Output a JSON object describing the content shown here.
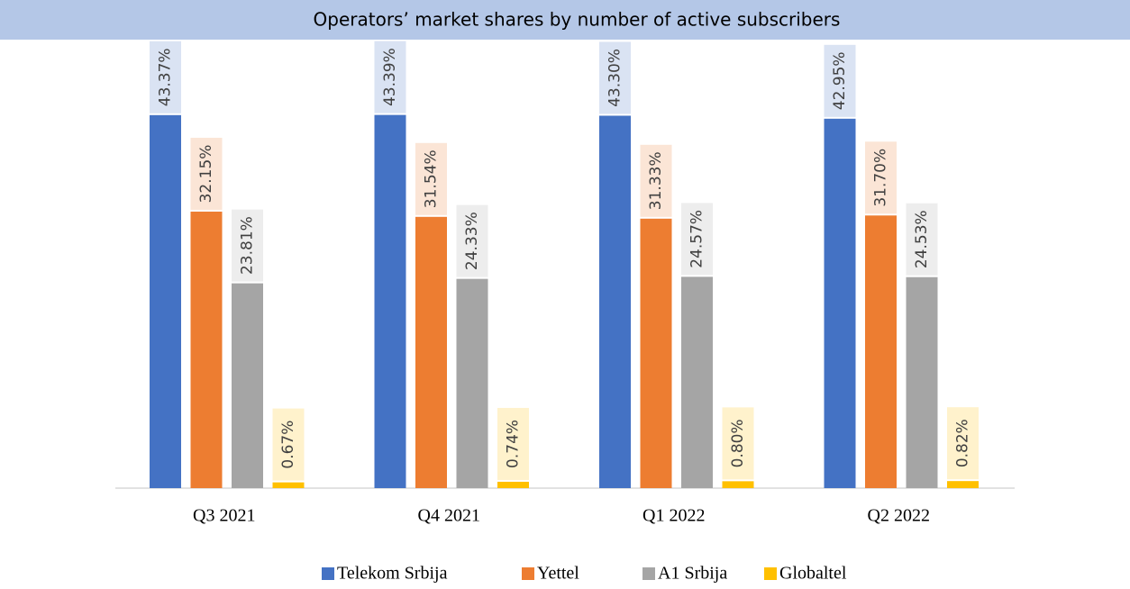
{
  "chart_data": {
    "type": "bar",
    "title": "Operators’ market shares by number of active subscribers",
    "categories": [
      "Q3 2021",
      "Q4 2021",
      "Q1 2022",
      "Q2 2022"
    ],
    "series": [
      {
        "name": "Telekom Srbija",
        "color": "#4472c4",
        "values": [
          43.37,
          43.39,
          43.3,
          42.95
        ],
        "value_labels": [
          "43.37%",
          "43.39%",
          "43.30%",
          "42.95%"
        ]
      },
      {
        "name": "Yettel",
        "color": "#ed7d31",
        "values": [
          32.15,
          31.54,
          31.33,
          31.7
        ],
        "value_labels": [
          "32.15%",
          "31.54%",
          "31.33%",
          "31.70%"
        ]
      },
      {
        "name": "A1 Srbija",
        "color": "#a5a5a5",
        "values": [
          23.81,
          24.33,
          24.57,
          24.53
        ],
        "value_labels": [
          "23.81%",
          "24.33%",
          "24.57%",
          "24.53%"
        ]
      },
      {
        "name": "Globaltel",
        "color": "#ffc000",
        "values": [
          0.67,
          0.74,
          0.8,
          0.82
        ],
        "value_labels": [
          "0.67%",
          "0.74%",
          "0.80%",
          "0.82%"
        ]
      }
    ],
    "legend": "bottom"
  }
}
